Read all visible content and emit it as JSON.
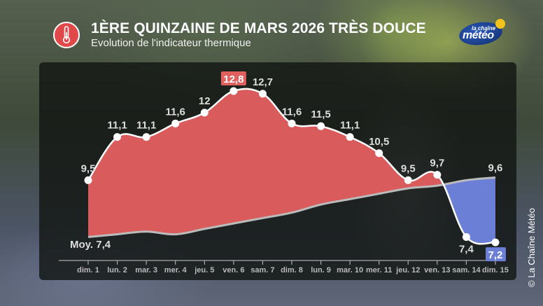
{
  "header": {
    "title": "1ÈRE QUINZAINE DE MARS 2026 TRÈS DOUCE",
    "subtitle": "Evolution de l'indicateur thermique",
    "icon": "thermometer-icon"
  },
  "logo": {
    "line1": "la chaîne",
    "line2": "météo"
  },
  "copyright": "© La Chaîne Météo",
  "colors": {
    "above": "#d95b5b",
    "below": "#6b7fd7",
    "normal_line": "#bbbbbb",
    "actual_line": "#ffffff",
    "max_badge": "#e06060",
    "min_badge": "#6b7fd7"
  },
  "chart_data": {
    "type": "area",
    "title": "1ÈRE QUINZAINE DE MARS 2026 TRÈS DOUCE",
    "subtitle": "Evolution de l'indicateur thermique",
    "categories": [
      "dim. 1",
      "lun. 2",
      "mar. 3",
      "mer. 4",
      "jeu. 5",
      "ven. 6",
      "sam. 7",
      "dim. 8",
      "lun. 9",
      "mar. 10",
      "mer. 11",
      "jeu. 12",
      "ven. 13",
      "sam. 14",
      "dim. 15"
    ],
    "series": [
      {
        "name": "Indicateur thermique",
        "values": [
          9.5,
          11.1,
          11.1,
          11.6,
          12.0,
          12.8,
          12.7,
          11.6,
          11.5,
          11.1,
          10.5,
          9.5,
          9.7,
          7.4,
          7.2
        ],
        "labels": [
          "9,5",
          "11,1",
          "11,1",
          "11,6",
          "12",
          "12,8",
          "12,7",
          "11,6",
          "11,5",
          "11,1",
          "10,5",
          "9,5",
          "9,7",
          "7,4",
          "7,2"
        ]
      },
      {
        "name": "Moyenne (normale)",
        "values": [
          7.4,
          7.5,
          7.6,
          7.5,
          7.7,
          7.9,
          8.1,
          8.3,
          8.6,
          8.8,
          9.0,
          9.2,
          9.3,
          9.5,
          9.6
        ],
        "start_label": "Moy. 7,4",
        "end_label": "9,6"
      }
    ],
    "max_label": "12,8",
    "min_label": "7,2",
    "xlabel": "",
    "ylabel": "",
    "ylim": [
      7.2,
      12.8
    ],
    "grid": false,
    "legend": "none"
  }
}
